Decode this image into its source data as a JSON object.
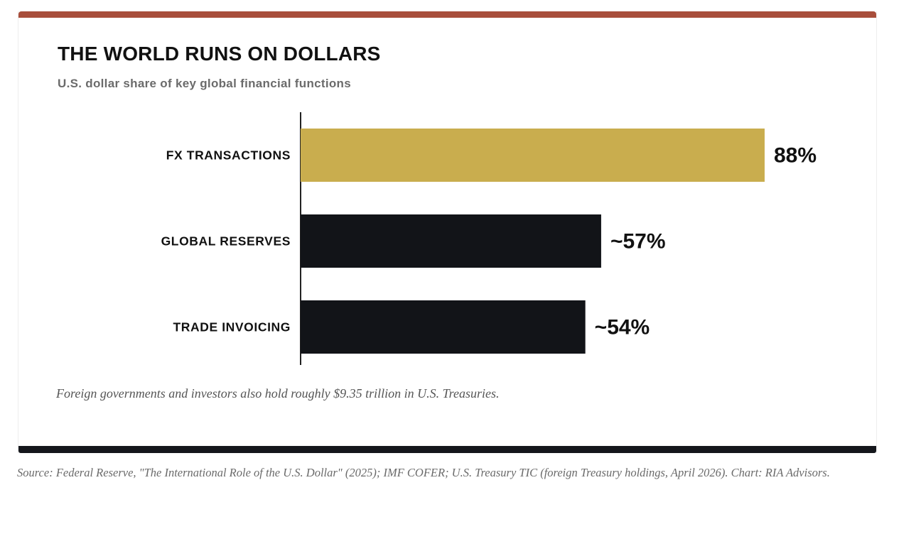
{
  "card": {
    "title": "THE WORLD RUNS ON DOLLARS",
    "subtitle": "U.S. dollar share of key global financial functions",
    "note": "Foreign governments and investors also hold roughly $9.35 trillion in U.S. Treasuries."
  },
  "source": "Source: Federal Reserve, \"The International Role of the U.S. Dollar\" (2025); IMF COFER; U.S. Treasury TIC (foreign Treasury holdings, April 2026). Chart: RIA Advisors.",
  "colors": {
    "top_accent": "#a84e3b",
    "highlight_bar": "#c9ad4e",
    "default_bar": "#121418",
    "bottom_accent": "#15171c"
  },
  "chart_data": {
    "type": "bar",
    "orientation": "horizontal",
    "title": "THE WORLD RUNS ON DOLLARS",
    "subtitle": "U.S. dollar share of key global financial functions",
    "xlabel": "",
    "ylabel": "",
    "categories": [
      "FX TRANSACTIONS",
      "GLOBAL RESERVES",
      "TRADE INVOICING"
    ],
    "values": [
      88,
      57,
      54
    ],
    "value_labels": [
      "88%",
      "~57%",
      "~54%"
    ],
    "bar_colors": [
      "#c9ad4e",
      "#121418",
      "#121418"
    ],
    "xlim": [
      0,
      100
    ],
    "grid": false,
    "legend": "none"
  }
}
